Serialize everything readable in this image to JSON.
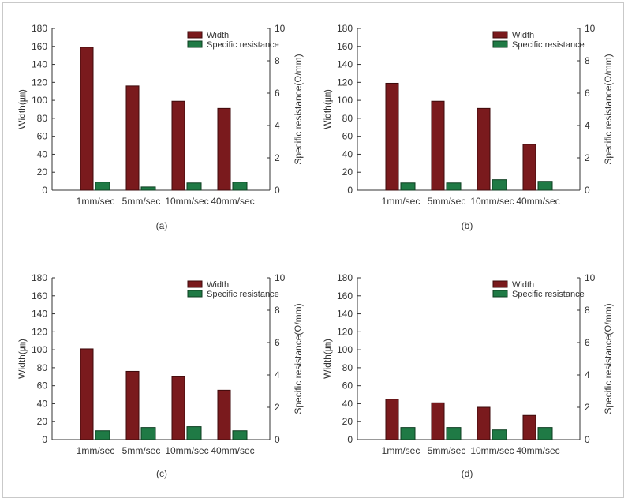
{
  "colors": {
    "width_fill": "#7a1a1d",
    "width_stroke": "#3d0a0b",
    "resist_fill": "#1f7a45",
    "resist_stroke": "#0d3d20",
    "axis": "#333333",
    "frame": "#c9c9c9"
  },
  "chart_data": [
    {
      "type": "bar",
      "caption": "(a)",
      "categories": [
        "1mm/sec",
        "5mm/sec",
        "10mm/sec",
        "40mm/sec"
      ],
      "ylabel": "Width(㎛)",
      "y2label": "Specific resistance(Ω/mm)",
      "ylim": [
        0,
        180
      ],
      "y2lim": [
        0,
        10
      ],
      "yticks": [
        "0",
        "20",
        "40",
        "60",
        "80",
        "100",
        "120",
        "140",
        "160",
        "180"
      ],
      "y2ticks": [
        "0",
        "2",
        "4",
        "6",
        "8",
        "10"
      ],
      "legend": [
        "Width",
        "Specific resistance"
      ],
      "series": [
        {
          "name": "Width",
          "axis": "left",
          "values": [
            159,
            116,
            99,
            91
          ]
        },
        {
          "name": "Specific resistance",
          "axis": "right",
          "values": [
            0.5,
            0.2,
            0.45,
            0.5
          ]
        }
      ]
    },
    {
      "type": "bar",
      "caption": "(b)",
      "categories": [
        "1mm/sec",
        "5mm/sec",
        "10mm/sec",
        "40mm/sec"
      ],
      "ylabel": "Width(㎛)",
      "y2label": "Specific resistance(Ω/mm)",
      "ylim": [
        0,
        180
      ],
      "y2lim": [
        0,
        10
      ],
      "yticks": [
        "0",
        "20",
        "40",
        "60",
        "80",
        "100",
        "120",
        "140",
        "160",
        "180"
      ],
      "y2ticks": [
        "0",
        "2",
        "4",
        "6",
        "8",
        "10"
      ],
      "legend": [
        "Width",
        "Specific resistance"
      ],
      "series": [
        {
          "name": "Width",
          "axis": "left",
          "values": [
            119,
            99,
            91,
            51
          ]
        },
        {
          "name": "Specific resistance",
          "axis": "right",
          "values": [
            0.45,
            0.45,
            0.65,
            0.55
          ]
        }
      ]
    },
    {
      "type": "bar",
      "caption": "(c)",
      "categories": [
        "1mm/sec",
        "5mm/sec",
        "10mm/sec",
        "40mm/sec"
      ],
      "ylabel": "Width(㎛)",
      "y2label": "Specific resistance(Ω/mm)",
      "ylim": [
        0,
        180
      ],
      "y2lim": [
        0,
        10
      ],
      "yticks": [
        "0",
        "20",
        "40",
        "60",
        "80",
        "100",
        "120",
        "140",
        "160",
        "180"
      ],
      "y2ticks": [
        "0",
        "2",
        "4",
        "6",
        "8",
        "10"
      ],
      "legend": [
        "Width",
        "Specific resistance"
      ],
      "series": [
        {
          "name": "Width",
          "axis": "left",
          "values": [
            101,
            76,
            70,
            55
          ]
        },
        {
          "name": "Specific resistance",
          "axis": "right",
          "values": [
            0.55,
            0.75,
            0.8,
            0.55
          ]
        }
      ]
    },
    {
      "type": "bar",
      "caption": "(d)",
      "categories": [
        "1mm/sec",
        "5mm/sec",
        "10mm/sec",
        "40mm/sec"
      ],
      "ylabel": "Width(㎛)",
      "y2label": "Specific resistance(Ω/mm)",
      "ylim": [
        0,
        180
      ],
      "y2lim": [
        0,
        10
      ],
      "yticks": [
        "0",
        "20",
        "40",
        "60",
        "80",
        "100",
        "120",
        "140",
        "160",
        "180"
      ],
      "y2ticks": [
        "0",
        "2",
        "4",
        "6",
        "8",
        "10"
      ],
      "legend": [
        "Width",
        "Specific resistance"
      ],
      "series": [
        {
          "name": "Width",
          "axis": "left",
          "values": [
            45,
            41,
            36,
            27
          ]
        },
        {
          "name": "Specific resistance",
          "axis": "right",
          "values": [
            0.75,
            0.75,
            0.6,
            0.75
          ]
        }
      ]
    }
  ]
}
